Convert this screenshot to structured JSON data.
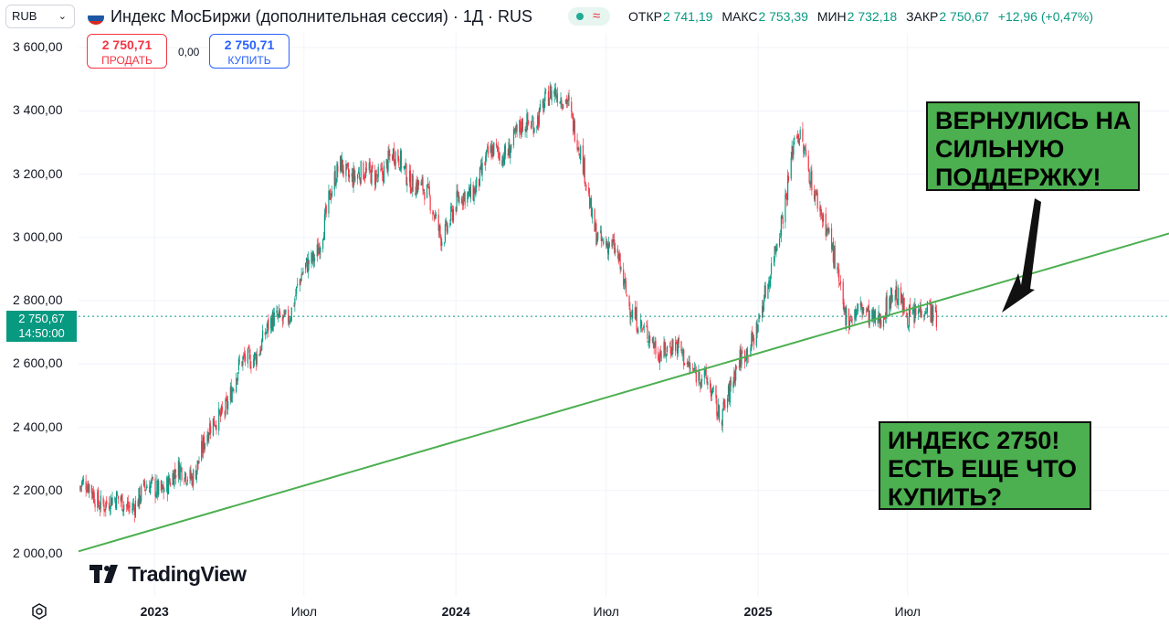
{
  "header": {
    "currency": "RUB",
    "title": "Индекс МосБиржи (дополнительная сессия) · 1Д · RUS",
    "ohlc": {
      "open_label": "ОТКР",
      "open": "2 741,19",
      "high_label": "МАКС",
      "high": "2 753,39",
      "low_label": "МИН",
      "low": "2 732,18",
      "close_label": "ЗАКР",
      "close": "2 750,67",
      "change": "+12,96 (+0,47%)"
    }
  },
  "trade": {
    "sell_price": "2 750,71",
    "sell_label": "ПРОДАТЬ",
    "spread": "0,00",
    "buy_price": "2 750,71",
    "buy_label": "КУПИТЬ"
  },
  "price_tag": {
    "price": "2 750,67",
    "time": "14:50:00"
  },
  "callouts": {
    "top": [
      "ВЕРНУЛИСЬ НА",
      "СИЛЬНУЮ",
      "ПОДДЕРЖКУ!"
    ],
    "bottom": [
      "ИНДЕКС 2750!",
      "ЕСТЬ ЕЩЕ ЧТО",
      "КУПИТЬ?"
    ]
  },
  "logo": "TradingView",
  "colors": {
    "up": "#089981",
    "down": "#f23645",
    "trendline": "#4caf50",
    "callout": "#4caf50"
  },
  "chart_data": {
    "type": "line",
    "title": "Индекс МосБиржи (дополнительная сессия) · 1Д · RUS",
    "chart_style": "candlestick",
    "xlabel": "",
    "ylabel": "",
    "x_ticks": [
      "2023",
      "Июл",
      "2024",
      "Июл",
      "2025",
      "Июл"
    ],
    "y_ticks": [
      "2 000,00",
      "2 200,00",
      "2 400,00",
      "2 600,00",
      "2 800,00",
      "3 000,00",
      "3 200,00",
      "3 400,00",
      "3 600,00"
    ],
    "ylim": [
      1880,
      3660
    ],
    "last_price": 2750.67,
    "grid": true,
    "series": [
      {
        "x": [
          "2022-10",
          "2022-11",
          "2022-12",
          "2023-01",
          "2023-02",
          "2023-03",
          "2023-04",
          "2023-05",
          "2023-06",
          "2023-07",
          "2023-08",
          "2023-09",
          "2023-10",
          "2023-11",
          "2023-12",
          "2024-01",
          "2024-02",
          "2024-03",
          "2024-04",
          "2024-05",
          "2024-06",
          "2024-07",
          "2024-08",
          "2024-09",
          "2024-10",
          "2024-11",
          "2024-12",
          "2025-01",
          "2025-02",
          "2025-03",
          "2025-04",
          "2025-05",
          "2025-06",
          "2025-07",
          "2025-08"
        ],
        "values": [
          2200,
          2150,
          2180,
          2230,
          2260,
          2410,
          2580,
          2690,
          2780,
          2960,
          3230,
          3180,
          3250,
          3180,
          3020,
          3140,
          3260,
          3310,
          3420,
          3460,
          3050,
          2920,
          2680,
          2650,
          2600,
          2450,
          2620,
          2850,
          3330,
          3130,
          2780,
          2740,
          2800,
          2760,
          2750
        ]
      }
    ],
    "trendline": {
      "points": [
        [
          "2022-09-01",
          1985
        ],
        [
          "2025-11-01",
          2865
        ]
      ]
    },
    "annotations": [
      "ВЕРНУЛИСЬ НА СИЛЬНУЮ ПОДДЕРЖКУ!",
      "ИНДЕКС 2750! ЕСТЬ ЕЩЕ ЧТО КУПИТЬ?"
    ]
  }
}
